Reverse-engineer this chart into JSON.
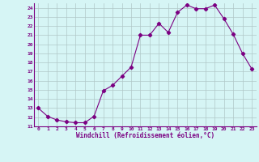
{
  "x": [
    0,
    1,
    2,
    3,
    4,
    5,
    6,
    7,
    8,
    9,
    10,
    11,
    12,
    13,
    14,
    15,
    16,
    17,
    18,
    19,
    20,
    21,
    22,
    23
  ],
  "y": [
    13,
    12.1,
    11.7,
    11.5,
    11.4,
    11.4,
    12.1,
    14.9,
    15.5,
    16.5,
    17.5,
    21.0,
    21.0,
    22.3,
    21.3,
    23.5,
    24.3,
    23.9,
    23.9,
    24.3,
    22.8,
    21.1,
    19.0,
    17.3
  ],
  "line_color": "#7b0082",
  "marker": "D",
  "marker_size": 2.2,
  "bg_color": "#d6f5f5",
  "grid_color": "#b0c8c8",
  "xlabel": "Windchill (Refroidissement éolien,°C)",
  "xlabel_color": "#7b0082",
  "tick_color": "#7b0082",
  "ylim": [
    11,
    24.5
  ],
  "yticks": [
    11,
    12,
    13,
    14,
    15,
    16,
    17,
    18,
    19,
    20,
    21,
    22,
    23,
    24
  ],
  "xticks": [
    0,
    1,
    2,
    3,
    4,
    5,
    6,
    7,
    8,
    9,
    10,
    11,
    12,
    13,
    14,
    15,
    16,
    17,
    18,
    19,
    20,
    21,
    22,
    23
  ],
  "xlim": [
    -0.5,
    23.5
  ]
}
